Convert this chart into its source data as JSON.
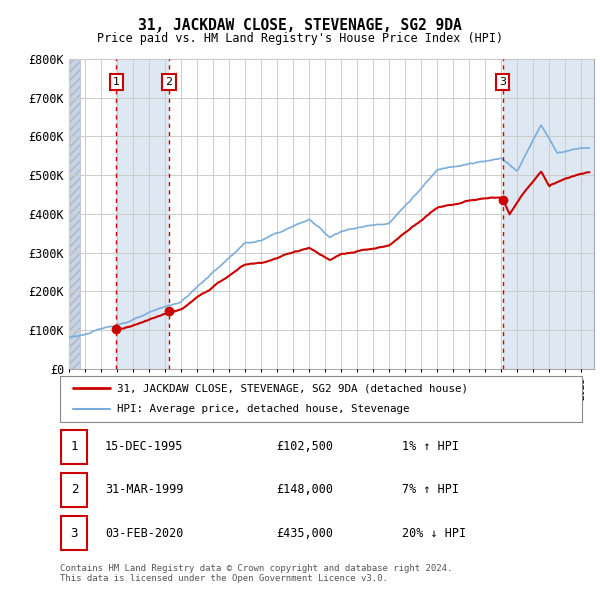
{
  "title": "31, JACKDAW CLOSE, STEVENAGE, SG2 9DA",
  "subtitle": "Price paid vs. HM Land Registry's House Price Index (HPI)",
  "ylim": [
    0,
    800000
  ],
  "yticks": [
    0,
    100000,
    200000,
    300000,
    400000,
    500000,
    600000,
    700000,
    800000
  ],
  "ytick_labels": [
    "£0",
    "£100K",
    "£200K",
    "£300K",
    "£400K",
    "£500K",
    "£600K",
    "£700K",
    "£800K"
  ],
  "xmin": 1993,
  "xmax": 2025.8,
  "hatch_end_year": 1993.7,
  "sale_years": [
    1995.958,
    1999.25,
    2020.085
  ],
  "sale_prices": [
    102500,
    148000,
    435000
  ],
  "sale_labels": [
    "1",
    "2",
    "3"
  ],
  "legend_line1_label": "31, JACKDAW CLOSE, STEVENAGE, SG2 9DA (detached house)",
  "legend_line2_label": "HPI: Average price, detached house, Stevenage",
  "red_color": "#cc0000",
  "blue_color": "#7aaddb",
  "blue_band_color": "#dde8f3",
  "hatch_color": "#c8d4e4",
  "grid_color": "#cccccc",
  "bg_color": "#ffffff",
  "table_rows": [
    {
      "num": "1",
      "date": "15-DEC-1995",
      "price": "£102,500",
      "hpi": "1% ↑ HPI"
    },
    {
      "num": "2",
      "date": "31-MAR-1999",
      "price": "£148,000",
      "hpi": "7% ↑ HPI"
    },
    {
      "num": "3",
      "date": "03-FEB-2020",
      "price": "£435,000",
      "hpi": "20% ↓ HPI"
    }
  ],
  "footer": "Contains HM Land Registry data © Crown copyright and database right 2024.\nThis data is licensed under the Open Government Licence v3.0."
}
